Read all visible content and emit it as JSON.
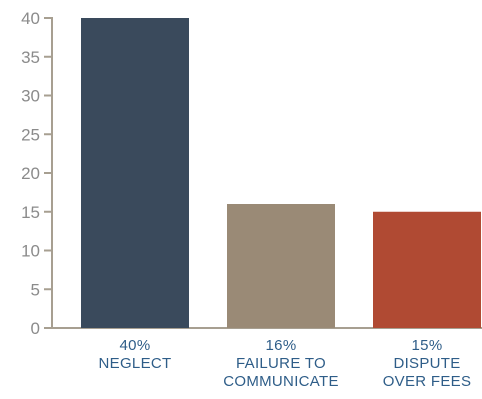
{
  "chart_data": {
    "type": "bar",
    "categories": [
      "NEGLECT",
      "FAILURE TO COMMUNICATE",
      "DISPUTE OVER FEES"
    ],
    "category_labels": [
      [
        "40%",
        "NEGLECT"
      ],
      [
        "16%",
        "FAILURE TO",
        "COMMUNICATE"
      ],
      [
        "15%",
        "DISPUTE",
        "OVER FEES"
      ]
    ],
    "values": [
      40,
      16,
      15
    ],
    "colors": [
      "#3a4a5c",
      "#9a8a76",
      "#b04a33"
    ],
    "yticks": [
      0,
      5,
      10,
      15,
      20,
      25,
      30,
      35,
      40
    ],
    "ylim": [
      0,
      40
    ],
    "title": "",
    "xlabel": "",
    "ylabel": "",
    "grid": false,
    "legend": "none"
  }
}
